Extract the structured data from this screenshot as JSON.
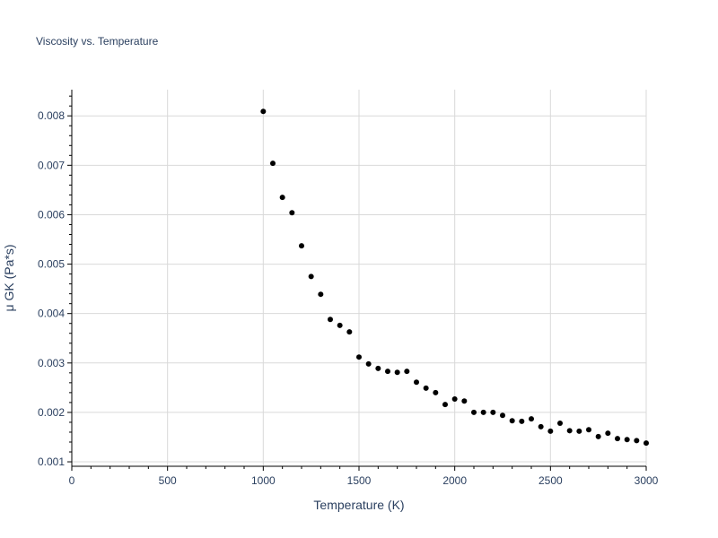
{
  "chart_data": {
    "type": "scatter",
    "title": "Viscosity vs. Temperature",
    "xlabel": "Temperature (K)",
    "ylabel": "μ GK (Pa*s)",
    "xlim": [
      0,
      3000
    ],
    "ylim": [
      0.00091,
      0.00853
    ],
    "x_ticks": [
      0,
      500,
      1000,
      1500,
      2000,
      2500,
      3000
    ],
    "x_tick_labels": [
      "0",
      "500",
      "1000",
      "1500",
      "2000",
      "2500",
      "3000"
    ],
    "y_ticks": [
      0.001,
      0.002,
      0.003,
      0.004,
      0.005,
      0.006,
      0.007,
      0.008
    ],
    "y_tick_labels": [
      "0.001",
      "0.002",
      "0.003",
      "0.004",
      "0.005",
      "0.006",
      "0.007",
      "0.008"
    ],
    "grid": true,
    "marker_color": "#000000",
    "grid_color": "#d9d9d9",
    "text_color": "#2a3f5f",
    "x": [
      1000,
      1050,
      1100,
      1150,
      1200,
      1250,
      1300,
      1350,
      1400,
      1450,
      1500,
      1550,
      1600,
      1650,
      1700,
      1750,
      1800,
      1850,
      1900,
      1950,
      2000,
      2050,
      2100,
      2150,
      2200,
      2250,
      2300,
      2350,
      2400,
      2450,
      2500,
      2550,
      2600,
      2650,
      2700,
      2750,
      2800,
      2850,
      2900,
      2950,
      3000
    ],
    "y": [
      0.00809,
      0.00704,
      0.00635,
      0.00604,
      0.00537,
      0.00475,
      0.00439,
      0.00388,
      0.00376,
      0.00363,
      0.00312,
      0.00298,
      0.00289,
      0.00283,
      0.00281,
      0.00283,
      0.00261,
      0.00249,
      0.0024,
      0.00216,
      0.00227,
      0.00223,
      0.002,
      0.002,
      0.002,
      0.00194,
      0.00183,
      0.00182,
      0.00187,
      0.00171,
      0.00162,
      0.00178,
      0.00163,
      0.00162,
      0.00165,
      0.00151,
      0.00158,
      0.00147,
      0.00145,
      0.00143,
      0.00138
    ]
  }
}
